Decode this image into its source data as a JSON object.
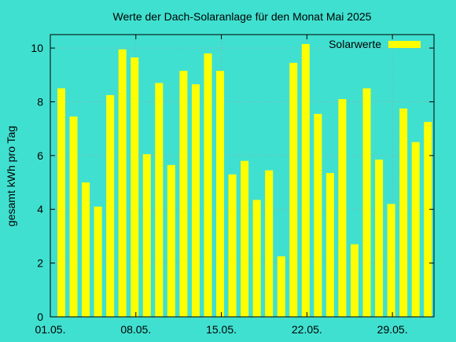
{
  "chart_data": {
    "type": "bar",
    "title": "Werte der Dach-Solaranlage für den Monat Mai 2025",
    "ylabel": "gesamt kWh pro Tag",
    "xlabel": "",
    "ylim": [
      0,
      10.5
    ],
    "yticks": [
      0,
      2,
      4,
      6,
      8,
      10
    ],
    "ytick_labels": [
      "0",
      "2",
      "4",
      "6",
      "8",
      "10"
    ],
    "xticks": [
      "01.05.",
      "08.05.",
      "15.05.",
      "22.05.",
      "29.05."
    ],
    "grid": true,
    "legend": "top-right",
    "bar_color": "#ffff00",
    "background": "#40e0d0",
    "categories": [
      "01.05.",
      "02.05.",
      "03.05.",
      "04.05.",
      "05.05.",
      "06.05.",
      "07.05.",
      "08.05.",
      "09.05.",
      "10.05.",
      "11.05.",
      "12.05.",
      "13.05.",
      "14.05.",
      "15.05.",
      "16.05.",
      "17.05.",
      "18.05.",
      "19.05.",
      "20.05.",
      "21.05.",
      "22.05.",
      "23.05.",
      "24.05.",
      "25.05.",
      "26.05.",
      "27.05.",
      "28.05.",
      "29.05.",
      "30.05.",
      "31.05."
    ],
    "series": [
      {
        "name": "Solarwerte",
        "values": [
          8.5,
          7.45,
          5.0,
          4.1,
          8.25,
          9.95,
          9.65,
          6.05,
          8.7,
          5.65,
          9.15,
          8.65,
          9.8,
          9.15,
          5.3,
          5.8,
          4.35,
          5.45,
          2.25,
          9.45,
          10.15,
          7.55,
          5.35,
          8.1,
          2.7,
          8.5,
          5.85,
          4.2,
          7.75,
          6.5,
          7.25
        ]
      }
    ]
  }
}
